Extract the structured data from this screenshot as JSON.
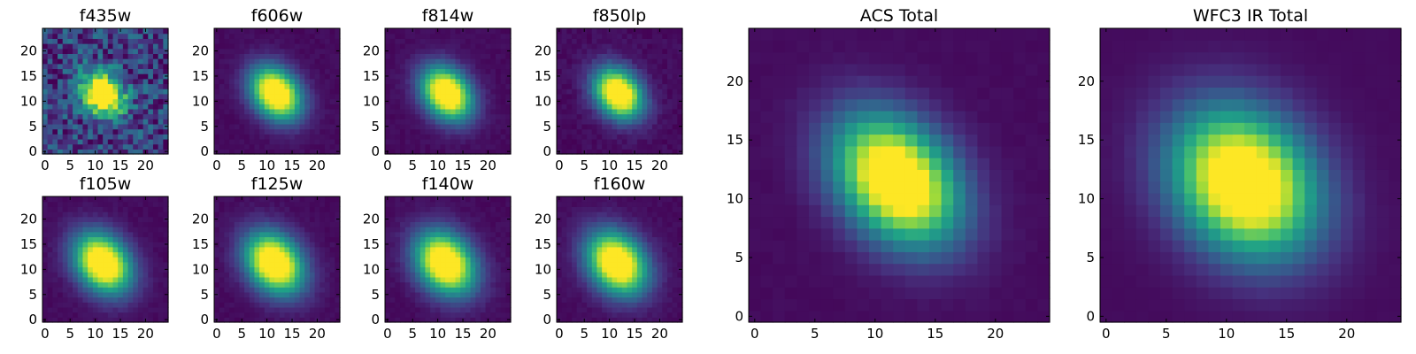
{
  "chart_data": {
    "type": "heatmap",
    "colormap": "viridis",
    "colormap_stops": [
      "#440154",
      "#46327e",
      "#365c8d",
      "#277f8e",
      "#1fa187",
      "#4ac16d",
      "#a0da39",
      "#fde725"
    ],
    "grid_size": 25,
    "panels": [
      {
        "title": "f435w",
        "xticks": [
          "0",
          "5",
          "10",
          "15",
          "20"
        ],
        "yticks": [
          "0",
          "5",
          "10",
          "15",
          "20"
        ],
        "center": [
          11.5,
          11.5
        ],
        "sigma": [
          2.6,
          3.2
        ],
        "rotation_deg": 40,
        "background": 0.18,
        "noise": 0.22,
        "xlim": [
          0,
          25
        ],
        "ylim": [
          0,
          25
        ]
      },
      {
        "title": "f606w",
        "xticks": [
          "0",
          "5",
          "10",
          "15",
          "20"
        ],
        "yticks": [
          "0",
          "5",
          "10",
          "15",
          "20"
        ],
        "center": [
          11.8,
          11.6
        ],
        "sigma": [
          3.0,
          4.0
        ],
        "rotation_deg": 40,
        "background": 0.03,
        "noise": 0.02,
        "xlim": [
          0,
          25
        ],
        "ylim": [
          0,
          25
        ]
      },
      {
        "title": "f814w",
        "xticks": [
          "0",
          "5",
          "10",
          "15",
          "20"
        ],
        "yticks": [
          "0",
          "5",
          "10",
          "15",
          "20"
        ],
        "center": [
          11.8,
          11.6
        ],
        "sigma": [
          3.0,
          4.0
        ],
        "rotation_deg": 40,
        "background": 0.03,
        "noise": 0.02,
        "xlim": [
          0,
          25
        ],
        "ylim": [
          0,
          25
        ]
      },
      {
        "title": "f850lp",
        "xticks": [
          "0",
          "5",
          "10",
          "15",
          "20"
        ],
        "yticks": [
          "0",
          "5",
          "10",
          "15",
          "20"
        ],
        "center": [
          11.8,
          11.6
        ],
        "sigma": [
          2.9,
          3.8
        ],
        "rotation_deg": 40,
        "background": 0.03,
        "noise": 0.03,
        "xlim": [
          0,
          25
        ],
        "ylim": [
          0,
          25
        ]
      },
      {
        "title": "f105w",
        "xticks": [
          "0",
          "5",
          "10",
          "15",
          "20"
        ],
        "yticks": [
          "0",
          "5",
          "10",
          "15",
          "20"
        ],
        "center": [
          11.5,
          11.3
        ],
        "sigma": [
          3.4,
          4.5
        ],
        "rotation_deg": 40,
        "background": 0.03,
        "noise": 0.02,
        "xlim": [
          0,
          25
        ],
        "ylim": [
          0,
          25
        ]
      },
      {
        "title": "f125w",
        "xticks": [
          "0",
          "5",
          "10",
          "15",
          "20"
        ],
        "yticks": [
          "0",
          "5",
          "10",
          "15",
          "20"
        ],
        "center": [
          11.5,
          11.3
        ],
        "sigma": [
          3.5,
          4.6
        ],
        "rotation_deg": 40,
        "background": 0.03,
        "noise": 0.02,
        "xlim": [
          0,
          25
        ],
        "ylim": [
          0,
          25
        ]
      },
      {
        "title": "f140w",
        "xticks": [
          "0",
          "5",
          "10",
          "15",
          "20"
        ],
        "yticks": [
          "0",
          "5",
          "10",
          "15",
          "20"
        ],
        "center": [
          11.5,
          11.3
        ],
        "sigma": [
          3.6,
          4.7
        ],
        "rotation_deg": 40,
        "background": 0.03,
        "noise": 0.02,
        "xlim": [
          0,
          25
        ],
        "ylim": [
          0,
          25
        ]
      },
      {
        "title": "f160w",
        "xticks": [
          "0",
          "5",
          "10",
          "15",
          "20"
        ],
        "yticks": [
          "0",
          "5",
          "10",
          "15",
          "20"
        ],
        "center": [
          11.5,
          11.3
        ],
        "sigma": [
          3.6,
          4.7
        ],
        "rotation_deg": 40,
        "background": 0.03,
        "noise": 0.02,
        "xlim": [
          0,
          25
        ],
        "ylim": [
          0,
          25
        ]
      },
      {
        "title": "ACS Total",
        "xticks": [
          "0",
          "5",
          "10",
          "15",
          "20"
        ],
        "yticks": [
          "0",
          "5",
          "10",
          "15",
          "20"
        ],
        "center": [
          11.8,
          11.6
        ],
        "sigma": [
          3.0,
          4.2
        ],
        "rotation_deg": 40,
        "background": 0.03,
        "noise": 0.01,
        "xlim": [
          0,
          25
        ],
        "ylim": [
          0,
          25
        ]
      },
      {
        "title": "WFC3 IR Total",
        "xticks": [
          "0",
          "5",
          "10",
          "15",
          "20"
        ],
        "yticks": [
          "0",
          "5",
          "10",
          "15",
          "20"
        ],
        "center": [
          11.5,
          11.4
        ],
        "sigma": [
          3.7,
          4.6
        ],
        "rotation_deg": 40,
        "background": 0.03,
        "noise": 0.005,
        "xlim": [
          0,
          25
        ],
        "ylim": [
          0,
          25
        ]
      }
    ]
  }
}
